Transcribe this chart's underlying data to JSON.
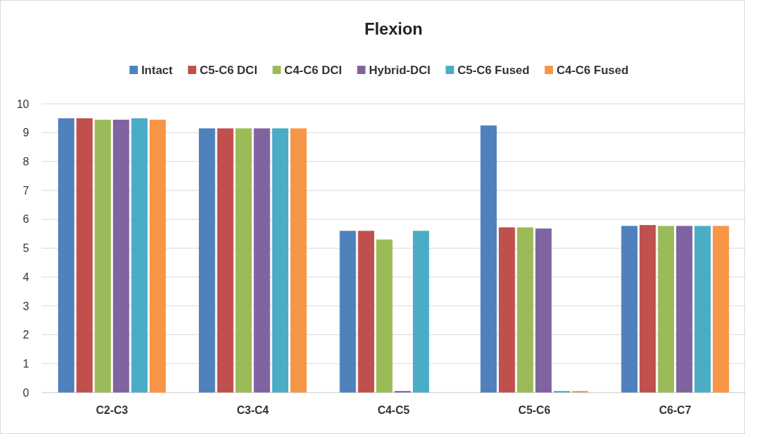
{
  "chart_data": {
    "type": "bar",
    "title": "Flexion",
    "categories": [
      "C2-C3",
      "C3-C4",
      "C4-C5",
      "C5-C6",
      "C6-C7"
    ],
    "series": [
      {
        "name": "Intact",
        "color": "#4f81bd",
        "values": [
          9.5,
          9.15,
          5.6,
          9.25,
          5.77
        ]
      },
      {
        "name": "C5-C6 DCI",
        "color": "#c0504d",
        "values": [
          9.5,
          9.15,
          5.6,
          5.72,
          5.8
        ]
      },
      {
        "name": "C4-C6 DCI",
        "color": "#9bbb59",
        "values": [
          9.45,
          9.15,
          5.3,
          5.72,
          5.77
        ]
      },
      {
        "name": "Hybrid-DCI",
        "color": "#8064a2",
        "values": [
          9.45,
          9.15,
          0.05,
          5.68,
          5.77
        ]
      },
      {
        "name": "C5-C6 Fused",
        "color": "#4bacc6",
        "values": [
          9.5,
          9.15,
          5.6,
          0.05,
          5.77
        ]
      },
      {
        "name": "C4-C6 Fused",
        "color": "#f79646",
        "values": [
          9.45,
          9.15,
          0,
          0.05,
          5.77
        ]
      }
    ],
    "ylim": [
      0,
      10
    ],
    "yticks": [
      0,
      1,
      2,
      3,
      4,
      5,
      6,
      7,
      8,
      9,
      10
    ],
    "grid": "y",
    "legend": "top"
  }
}
